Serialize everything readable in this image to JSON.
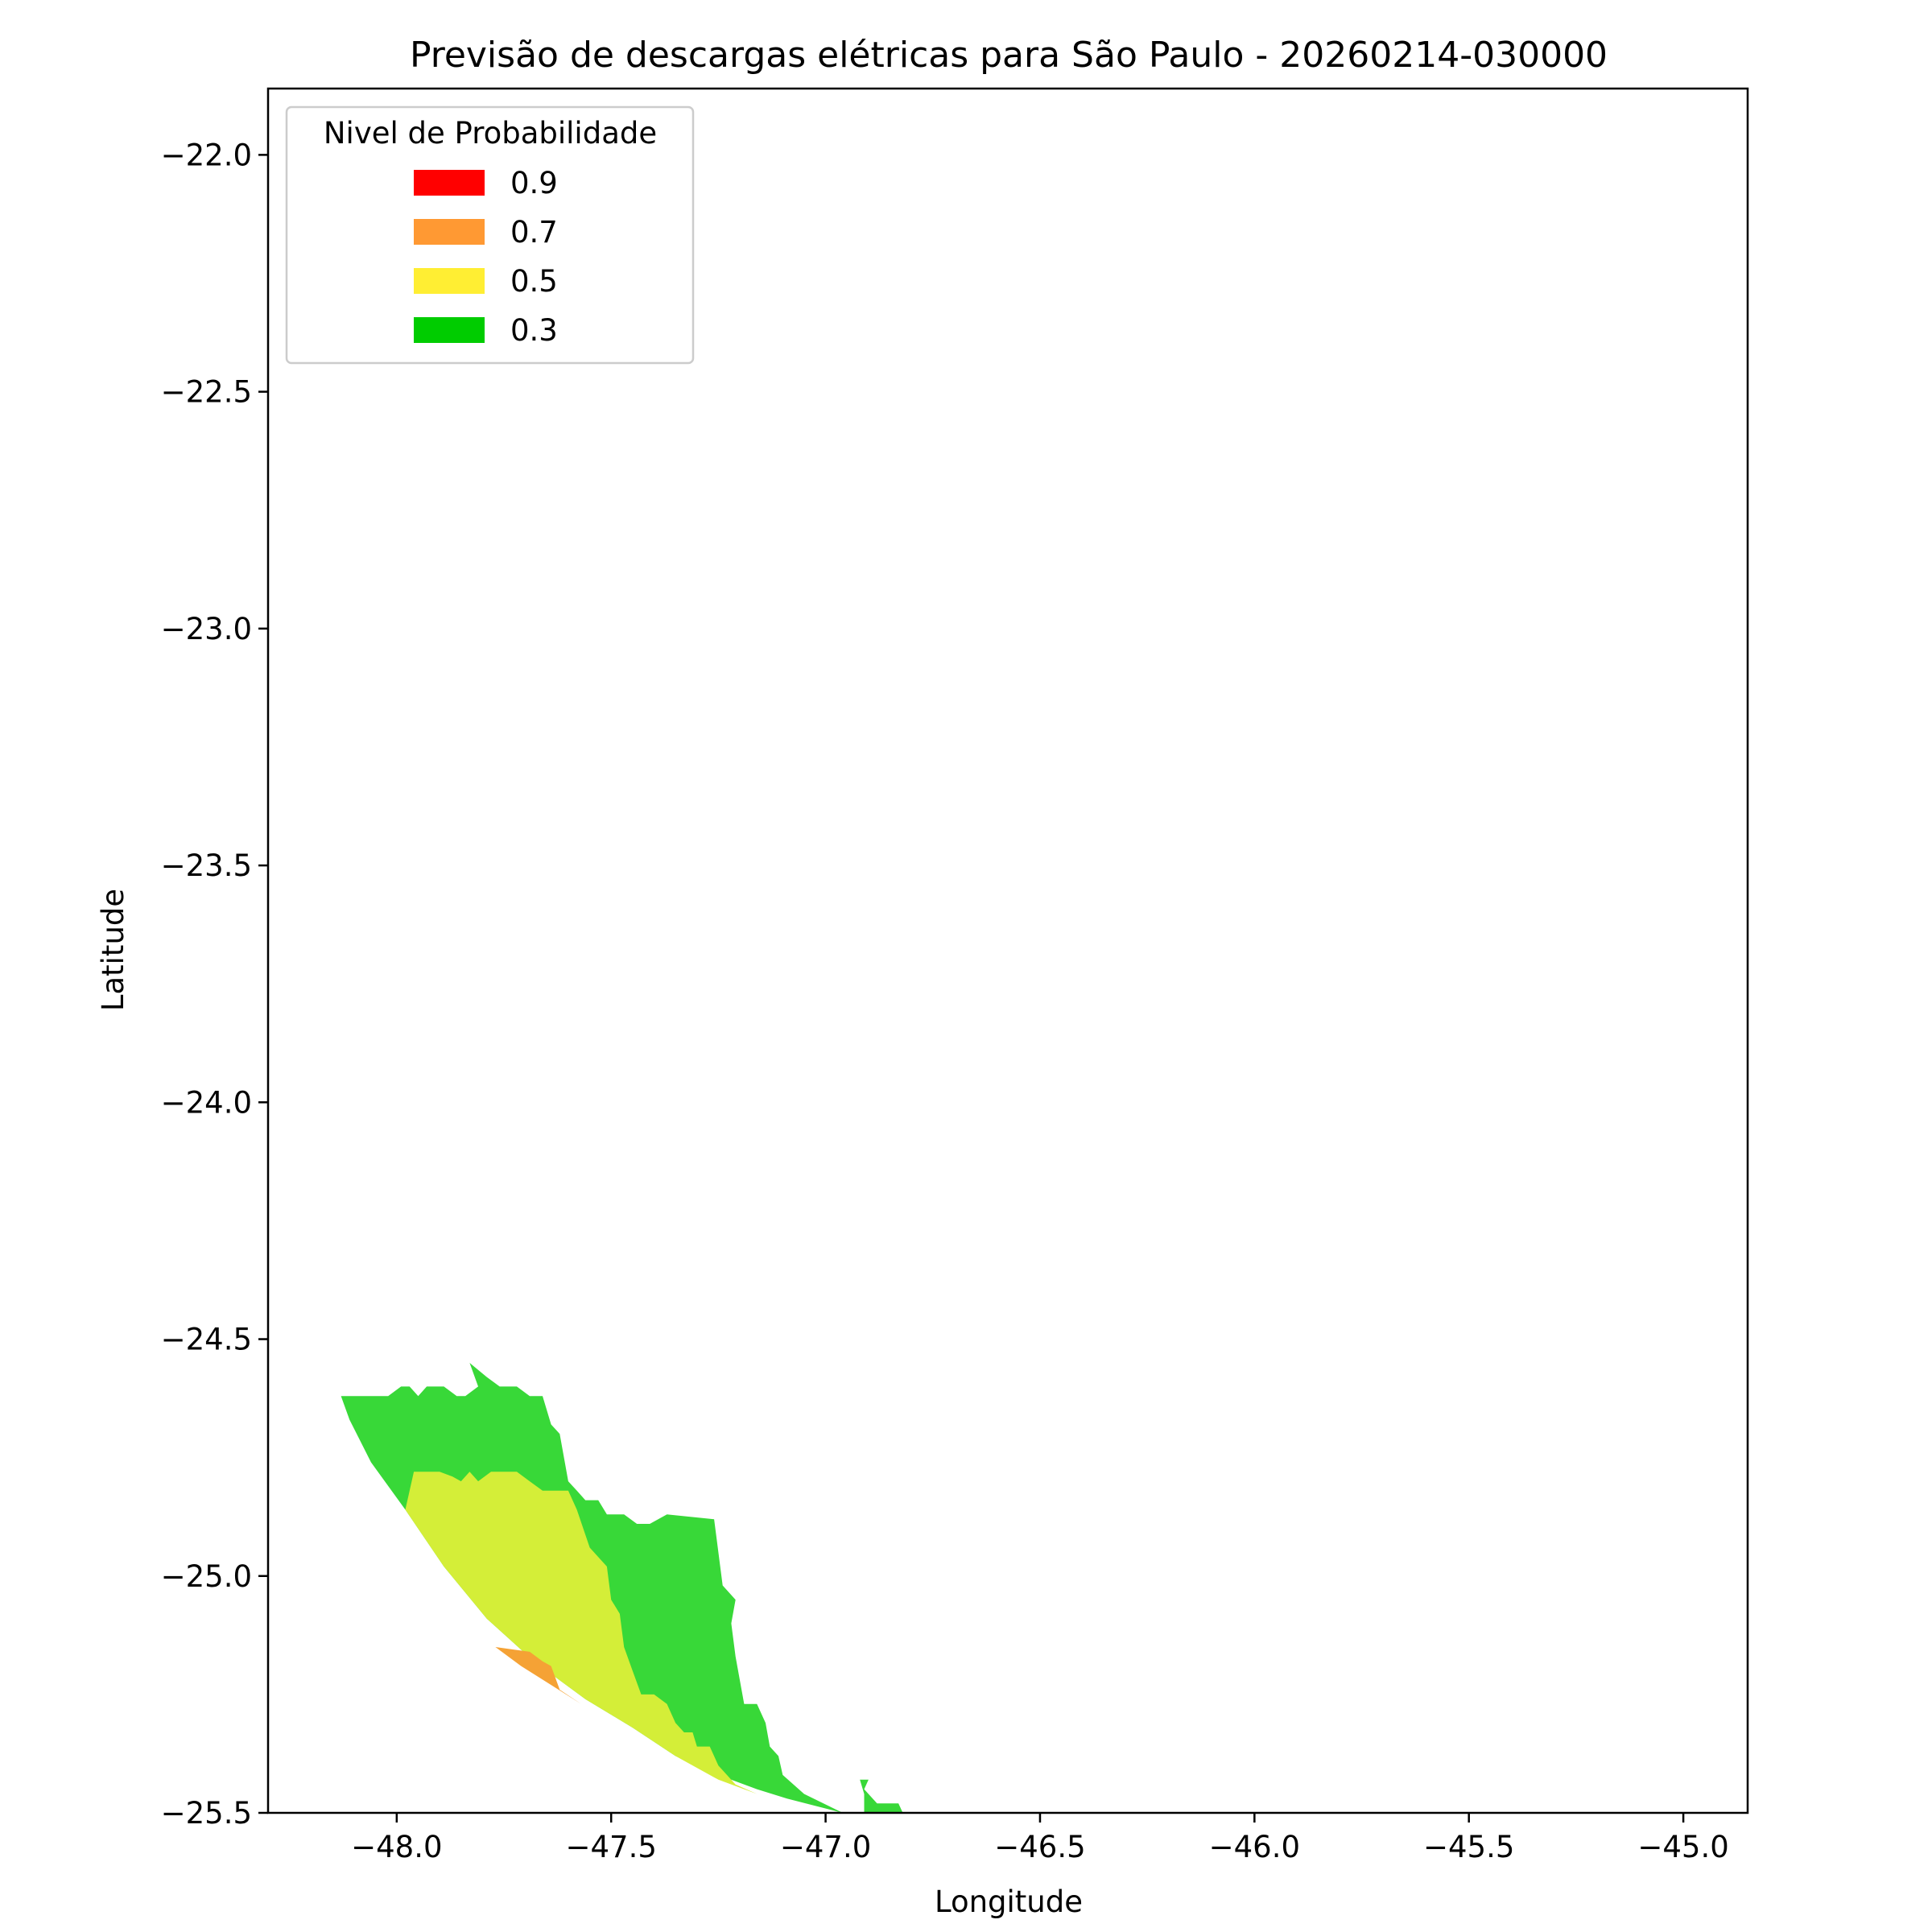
{
  "chart_data": {
    "type": "heatmap",
    "title": "Previsão de descargas elétricas para São Paulo - 20260214-030000",
    "xlabel": "Longitude",
    "ylabel": "Latitude",
    "xlim": [
      -48.3,
      -44.85
    ],
    "ylim": [
      -25.5,
      -21.86
    ],
    "x_ticks": [
      -48.0,
      -47.5,
      -47.0,
      -46.5,
      -46.0,
      -45.5,
      -45.0
    ],
    "x_tick_labels": [
      "−48.0",
      "−47.5",
      "−47.0",
      "−46.5",
      "−46.0",
      "−45.5",
      "−45.0"
    ],
    "y_ticks": [
      -22.0,
      -22.5,
      -23.0,
      -23.5,
      -24.0,
      -24.5,
      -25.0,
      -25.5
    ],
    "y_tick_labels": [
      "−22.0",
      "−22.5",
      "−23.0",
      "−23.5",
      "−24.0",
      "−24.5",
      "−25.0",
      "−25.5"
    ],
    "legend": {
      "title": "Nivel de Probabilidade",
      "placement": "top-left",
      "entries": [
        {
          "label": "0.9",
          "color": "#ff0000"
        },
        {
          "label": "0.7",
          "color": "#ff9933"
        },
        {
          "label": "0.5",
          "color": "#ffee33"
        },
        {
          "label": "0.3",
          "color": "#00cc00"
        }
      ]
    },
    "regions": [
      {
        "level": "0.3",
        "color": "#38d838",
        "points": [
          [
            -48.13,
            -24.62
          ],
          [
            -48.02,
            -24.62
          ],
          [
            -47.99,
            -24.6
          ],
          [
            -47.97,
            -24.6
          ],
          [
            -47.95,
            -24.62
          ],
          [
            -47.93,
            -24.6
          ],
          [
            -47.89,
            -24.6
          ],
          [
            -47.86,
            -24.62
          ],
          [
            -47.84,
            -24.62
          ],
          [
            -47.81,
            -24.6
          ],
          [
            -47.83,
            -24.55
          ],
          [
            -47.79,
            -24.58
          ],
          [
            -47.76,
            -24.6
          ],
          [
            -47.72,
            -24.6
          ],
          [
            -47.69,
            -24.62
          ],
          [
            -47.66,
            -24.62
          ],
          [
            -47.64,
            -24.68
          ],
          [
            -47.62,
            -24.7
          ],
          [
            -47.6,
            -24.8
          ],
          [
            -47.58,
            -24.82
          ],
          [
            -47.56,
            -24.84
          ],
          [
            -47.53,
            -24.84
          ],
          [
            -47.51,
            -24.87
          ],
          [
            -47.47,
            -24.87
          ],
          [
            -47.44,
            -24.89
          ],
          [
            -47.41,
            -24.89
          ],
          [
            -47.37,
            -24.87
          ],
          [
            -47.26,
            -24.88
          ],
          [
            -47.24,
            -25.02
          ],
          [
            -47.21,
            -25.05
          ],
          [
            -47.22,
            -25.1
          ],
          [
            -47.21,
            -25.17
          ],
          [
            -47.19,
            -25.27
          ],
          [
            -47.16,
            -25.27
          ],
          [
            -47.14,
            -25.31
          ],
          [
            -47.13,
            -25.36
          ],
          [
            -47.11,
            -25.38
          ],
          [
            -47.1,
            -25.42
          ],
          [
            -47.05,
            -25.46
          ],
          [
            -46.96,
            -25.5
          ],
          [
            -47.09,
            -25.47
          ],
          [
            -47.16,
            -25.45
          ],
          [
            -47.25,
            -25.42
          ],
          [
            -47.35,
            -25.38
          ],
          [
            -47.45,
            -25.32
          ],
          [
            -47.56,
            -25.26
          ],
          [
            -47.68,
            -25.18
          ],
          [
            -47.79,
            -25.09
          ],
          [
            -47.89,
            -24.98
          ],
          [
            -47.98,
            -24.86
          ],
          [
            -48.06,
            -24.76
          ],
          [
            -48.11,
            -24.67
          ]
        ]
      },
      {
        "level": "0.3",
        "color": "#38d838",
        "points": [
          [
            -46.92,
            -25.43
          ],
          [
            -46.9,
            -25.43
          ],
          [
            -46.91,
            -25.45
          ],
          [
            -46.88,
            -25.48
          ],
          [
            -46.83,
            -25.48
          ],
          [
            -46.82,
            -25.5
          ],
          [
            -46.91,
            -25.5
          ],
          [
            -46.91,
            -25.46
          ]
        ]
      },
      {
        "level": "0.5",
        "color": "#d4ee38",
        "points": [
          [
            -47.98,
            -24.86
          ],
          [
            -47.96,
            -24.78
          ],
          [
            -47.9,
            -24.78
          ],
          [
            -47.87,
            -24.79
          ],
          [
            -47.85,
            -24.8
          ],
          [
            -47.83,
            -24.78
          ],
          [
            -47.81,
            -24.8
          ],
          [
            -47.78,
            -24.78
          ],
          [
            -47.72,
            -24.78
          ],
          [
            -47.69,
            -24.8
          ],
          [
            -47.66,
            -24.82
          ],
          [
            -47.6,
            -24.82
          ],
          [
            -47.58,
            -24.86
          ],
          [
            -47.55,
            -24.94
          ],
          [
            -47.51,
            -24.98
          ],
          [
            -47.5,
            -25.05
          ],
          [
            -47.48,
            -25.08
          ],
          [
            -47.47,
            -25.15
          ],
          [
            -47.45,
            -25.2
          ],
          [
            -47.43,
            -25.25
          ],
          [
            -47.4,
            -25.25
          ],
          [
            -47.37,
            -25.27
          ],
          [
            -47.35,
            -25.31
          ],
          [
            -47.33,
            -25.33
          ],
          [
            -47.31,
            -25.33
          ],
          [
            -47.3,
            -25.36
          ],
          [
            -47.27,
            -25.36
          ],
          [
            -47.25,
            -25.4
          ],
          [
            -47.23,
            -25.42
          ],
          [
            -47.21,
            -25.44
          ],
          [
            -47.16,
            -25.46
          ],
          [
            -47.25,
            -25.43
          ],
          [
            -47.35,
            -25.38
          ],
          [
            -47.45,
            -25.32
          ],
          [
            -47.56,
            -25.26
          ],
          [
            -47.68,
            -25.18
          ],
          [
            -47.79,
            -25.09
          ],
          [
            -47.89,
            -24.98
          ]
        ]
      },
      {
        "level": "0.7",
        "color": "#f5a235",
        "points": [
          [
            -47.77,
            -25.15
          ],
          [
            -47.69,
            -25.16
          ],
          [
            -47.66,
            -25.18
          ],
          [
            -47.64,
            -25.19
          ],
          [
            -47.62,
            -25.24
          ],
          [
            -47.57,
            -25.27
          ],
          [
            -47.64,
            -25.23
          ],
          [
            -47.71,
            -25.19
          ]
        ]
      }
    ]
  }
}
